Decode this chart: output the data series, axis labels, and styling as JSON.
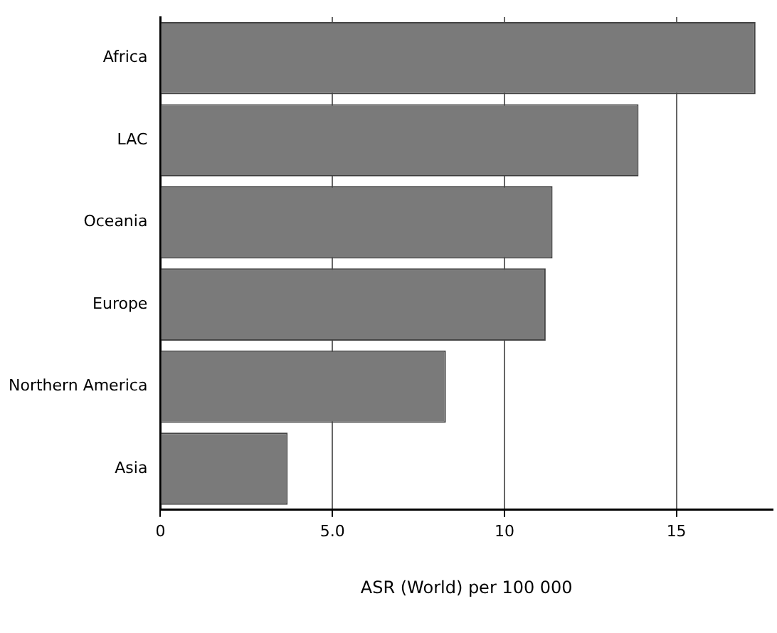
{
  "chart_data": {
    "type": "bar",
    "orientation": "horizontal",
    "xlabel": "ASR (World) per 100 000",
    "categories": [
      "Africa",
      "LAC",
      "Oceania",
      "Europe",
      "Northern America",
      "Asia"
    ],
    "values": [
      17.3,
      13.9,
      11.4,
      11.2,
      8.3,
      3.7
    ],
    "color": "#7a7a7a",
    "xlim": [
      0,
      17.8
    ],
    "xticks": [
      0,
      {
        "value": 5,
        "label": "5.0"
      },
      10,
      15
    ],
    "grid": "x"
  }
}
